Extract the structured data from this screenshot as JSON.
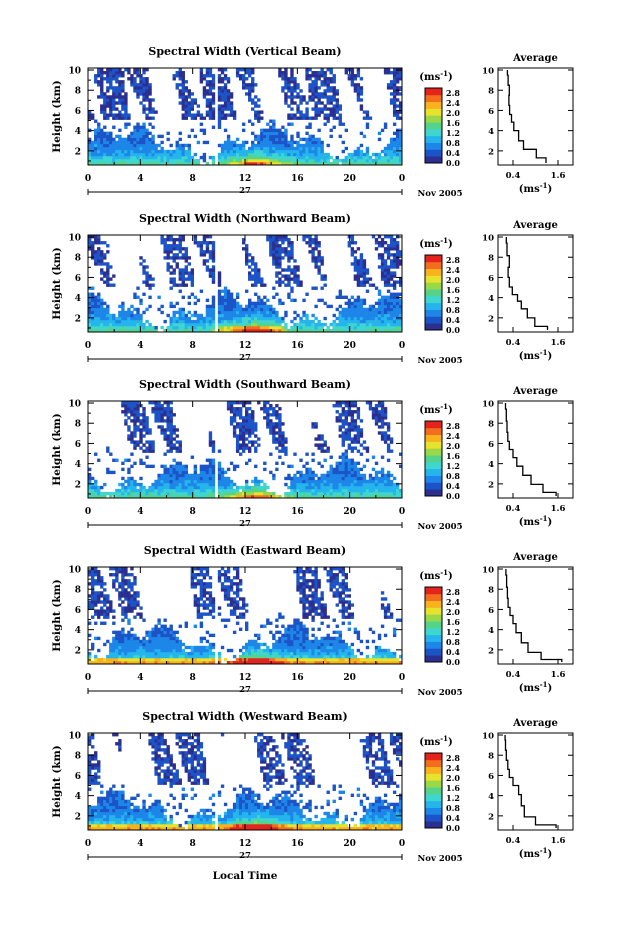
{
  "figure": {
    "ylabel": "Height (km)",
    "xlabel_bottom": "Local Time",
    "date_day": "27",
    "date_label": "Nov 2005",
    "unit_label": "(ms",
    "unit_exp": "-1",
    "unit_close": ")",
    "avg_title": "Average"
  },
  "chart_data": [
    {
      "type": "heatmap",
      "title": "Spectral Width (Vertical Beam)",
      "x_ticks": [
        "0",
        "4",
        "8",
        "12",
        "16",
        "20",
        "0"
      ],
      "y_ticks": [
        "2",
        "4",
        "6",
        "8",
        "10"
      ],
      "x_range_hours": [
        0,
        24
      ],
      "y_range_km": [
        0.6,
        10.2
      ],
      "colorbar_ticks": [
        "0.0",
        "0.4",
        "0.8",
        "1.2",
        "1.6",
        "2.0",
        "2.4",
        "2.8"
      ],
      "colorbar_range": [
        0,
        3.0
      ],
      "data_gap_hours": [
        9.6,
        9.9
      ],
      "average": {
        "x_ticks": [
          "0.4",
          "1.6"
        ],
        "y_ticks": [
          "2",
          "4",
          "6",
          "8",
          "10"
        ],
        "xlabel": "(ms",
        "xlabel_exp": "-1",
        "x_range": [
          0.0,
          2.0
        ],
        "profile_x": [
          1.28,
          1.02,
          0.68,
          0.55,
          0.42,
          0.36,
          0.31,
          0.29,
          0.3,
          0.27,
          0.25
        ],
        "profile_y": [
          0.8,
          1.8,
          2.5,
          3.5,
          4.5,
          5.2,
          6.0,
          7.0,
          8.0,
          9.0,
          10.0
        ]
      }
    },
    {
      "type": "heatmap",
      "title": "Spectral Width (Northward Beam)",
      "x_ticks": [
        "0",
        "4",
        "8",
        "12",
        "16",
        "20",
        "0"
      ],
      "y_ticks": [
        "2",
        "4",
        "6",
        "8",
        "10"
      ],
      "x_range_hours": [
        0,
        24
      ],
      "y_range_km": [
        0.6,
        10.2
      ],
      "colorbar_ticks": [
        "0.0",
        "0.4",
        "0.8",
        "1.2",
        "1.6",
        "2.0",
        "2.4",
        "2.8"
      ],
      "colorbar_range": [
        0,
        3.0
      ],
      "data_gap_hours": [
        9.6,
        9.9
      ],
      "average": {
        "x_ticks": [
          "0.4",
          "1.6"
        ],
        "y_ticks": [
          "2",
          "4",
          "6",
          "8",
          "10"
        ],
        "xlabel": "(ms",
        "xlabel_exp": "-1",
        "x_range": [
          0.0,
          2.0
        ],
        "profile_x": [
          1.32,
          0.98,
          0.78,
          0.62,
          0.52,
          0.38,
          0.3,
          0.27,
          0.3,
          0.24,
          0.22
        ],
        "profile_y": [
          0.8,
          1.5,
          2.5,
          3.3,
          4.0,
          4.6,
          5.5,
          6.5,
          7.5,
          8.8,
          10.0
        ]
      }
    },
    {
      "type": "heatmap",
      "title": "Spectral Width (Southward Beam)",
      "x_ticks": [
        "0",
        "4",
        "8",
        "12",
        "16",
        "20",
        "0"
      ],
      "y_ticks": [
        "2",
        "4",
        "6",
        "8",
        "10"
      ],
      "x_range_hours": [
        0,
        24
      ],
      "y_range_km": [
        0.6,
        10.2
      ],
      "colorbar_ticks": [
        "0.0",
        "0.4",
        "0.8",
        "1.2",
        "1.6",
        "2.0",
        "2.4",
        "2.8"
      ],
      "colorbar_range": [
        0,
        3.0
      ],
      "data_gap_hours": [
        9.6,
        9.9
      ],
      "average": {
        "x_ticks": [
          "0.4",
          "1.6"
        ],
        "y_ticks": [
          "2",
          "4",
          "6",
          "8",
          "10"
        ],
        "xlabel": "(ms",
        "xlabel_exp": "-1",
        "x_range": [
          0.0,
          2.0
        ],
        "profile_x": [
          1.55,
          1.2,
          0.88,
          0.66,
          0.5,
          0.4,
          0.3,
          0.26,
          0.24,
          0.22,
          0.2
        ],
        "profile_y": [
          0.8,
          1.5,
          2.4,
          3.3,
          4.2,
          5.0,
          5.8,
          6.6,
          7.6,
          8.8,
          10.0
        ]
      }
    },
    {
      "type": "heatmap",
      "title": "Spectral Width (Eastward Beam)",
      "x_ticks": [
        "0",
        "4",
        "8",
        "12",
        "16",
        "20",
        "0"
      ],
      "y_ticks": [
        "2",
        "4",
        "6",
        "8",
        "10"
      ],
      "x_range_hours": [
        0,
        24
      ],
      "y_range_km": [
        0.6,
        10.2
      ],
      "colorbar_ticks": [
        "0.0",
        "0.4",
        "0.8",
        "1.2",
        "1.6",
        "2.0",
        "2.4",
        "2.8"
      ],
      "colorbar_range": [
        0,
        3.0
      ],
      "data_gap_hours": [
        9.6,
        9.9
      ],
      "average": {
        "x_ticks": [
          "0.4",
          "1.6"
        ],
        "y_ticks": [
          "2",
          "4",
          "6",
          "8",
          "10"
        ],
        "xlabel": "(ms",
        "xlabel_exp": "-1",
        "x_range": [
          0.0,
          2.0
        ],
        "profile_x": [
          1.7,
          1.15,
          0.8,
          0.62,
          0.48,
          0.4,
          0.32,
          0.27,
          0.25,
          0.23,
          0.21
        ],
        "profile_y": [
          0.8,
          1.3,
          2.2,
          3.2,
          4.2,
          5.0,
          5.8,
          6.6,
          7.6,
          8.8,
          10.0
        ]
      }
    },
    {
      "type": "heatmap",
      "title": "Spectral Width (Westward Beam)",
      "x_ticks": [
        "0",
        "4",
        "8",
        "12",
        "16",
        "20",
        "0"
      ],
      "y_ticks": [
        "2",
        "4",
        "6",
        "8",
        "10"
      ],
      "x_range_hours": [
        0,
        24
      ],
      "y_range_km": [
        0.6,
        10.2
      ],
      "colorbar_ticks": [
        "0.0",
        "0.4",
        "0.8",
        "1.2",
        "1.6",
        "2.0",
        "2.4",
        "2.8"
      ],
      "colorbar_range": [
        0,
        3.0
      ],
      "data_gap_hours": [
        9.6,
        9.9
      ],
      "average": {
        "x_ticks": [
          "0.4",
          "1.6"
        ],
        "y_ticks": [
          "2",
          "4",
          "6",
          "8",
          "10"
        ],
        "xlabel": "(ms",
        "xlabel_exp": "-1",
        "x_range": [
          0.0,
          2.0
        ],
        "profile_x": [
          1.55,
          1.0,
          0.7,
          0.62,
          0.55,
          0.4,
          0.3,
          0.26,
          0.22,
          0.2,
          0.19
        ],
        "profile_y": [
          0.8,
          1.4,
          2.4,
          3.6,
          4.6,
          5.4,
          6.2,
          7.0,
          8.0,
          9.0,
          10.0
        ]
      }
    }
  ],
  "colors": {
    "colormap": [
      "#2b2f8f",
      "#1c54c8",
      "#1d86e8",
      "#25b5ec",
      "#3fd6d0",
      "#55d38a",
      "#9bd848",
      "#e6e22e",
      "#f7b21e",
      "#f26d1e",
      "#e5231d"
    ],
    "axis": "#000000"
  }
}
